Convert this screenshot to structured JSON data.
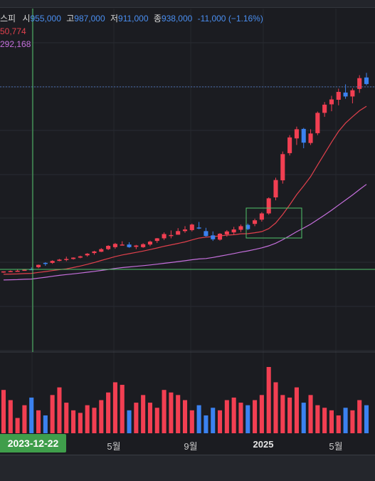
{
  "legend": {
    "name": "스피",
    "open_label": "시",
    "open": "955,000",
    "high_label": "고",
    "high": "987,000",
    "low_label": "저",
    "low": "911,000",
    "close_label": "종",
    "close": "938,000",
    "change": "-11,000 (−1.16%)",
    "ma_short": "50,774",
    "ma_long": "292,168"
  },
  "colors": {
    "background": "#1b1c21",
    "up": "#f23f52",
    "down": "#3b82f0",
    "ma_short": "#e0404c",
    "ma_long": "#c56fdc",
    "crosshair": "#52c46a",
    "price_line": "#4a6bb0"
  },
  "crosshair": {
    "date_label": "2023-12-22"
  },
  "x_axis": {
    "ticks": [
      {
        "label": "5월",
        "bold": false
      },
      {
        "label": "9월",
        "bold": false
      },
      {
        "label": "2025",
        "bold": true
      },
      {
        "label": "5월",
        "bold": false
      }
    ]
  },
  "chart_data": {
    "type": "candlestick",
    "price_axis_visible": false,
    "candles_ohlc_approx": [
      [
        94,
        90,
        93,
        94
      ],
      [
        97,
        92,
        94,
        95
      ],
      [
        100,
        95,
        96,
        96
      ],
      [
        101,
        97,
        99,
        99
      ],
      [
        106,
        100,
        101,
        100
      ],
      [
        115,
        104,
        107,
        114
      ],
      [
        122,
        111,
        120,
        118
      ],
      [
        128,
        117,
        120,
        126
      ],
      [
        132,
        125,
        126,
        130
      ],
      [
        139,
        125,
        131,
        132
      ],
      [
        137,
        130,
        132,
        136
      ],
      [
        142,
        134,
        136,
        140
      ],
      [
        150,
        139,
        143,
        148
      ],
      [
        157,
        145,
        150,
        155
      ],
      [
        165,
        153,
        154,
        162
      ],
      [
        174,
        159,
        162,
        172
      ],
      [
        181,
        163,
        168,
        178
      ],
      [
        186,
        174,
        176,
        176
      ],
      [
        183,
        166,
        176,
        168
      ],
      [
        175,
        162,
        169,
        173
      ],
      [
        180,
        166,
        168,
        177
      ],
      [
        188,
        171,
        176,
        185
      ],
      [
        196,
        181,
        187,
        195
      ],
      [
        213,
        190,
        195,
        208
      ],
      [
        219,
        195,
        203,
        205
      ],
      [
        226,
        206,
        206,
        217
      ],
      [
        232,
        212,
        217,
        222
      ],
      [
        240,
        216,
        220,
        237
      ],
      [
        245,
        223,
        228,
        225
      ],
      [
        227,
        200,
        217,
        202
      ],
      [
        216,
        187,
        204,
        192
      ],
      [
        211,
        188,
        191,
        209
      ],
      [
        220,
        200,
        207,
        216
      ],
      [
        230,
        205,
        213,
        222
      ],
      [
        237,
        214,
        221,
        232
      ],
      [
        240,
        220,
        236,
        223
      ],
      [
        255,
        232,
        239,
        250
      ],
      [
        275,
        246,
        252,
        271
      ],
      [
        320,
        267,
        271,
        317
      ],
      [
        380,
        311,
        320,
        373
      ],
      [
        460,
        362,
        372,
        452
      ],
      [
        510,
        448,
        455,
        503
      ],
      [
        536,
        480,
        500,
        528
      ],
      [
        532,
        470,
        529,
        487
      ],
      [
        528,
        480,
        486,
        515
      ],
      [
        582,
        510,
        516,
        578
      ],
      [
        611,
        566,
        578,
        603
      ],
      [
        630,
        583,
        604,
        619
      ],
      [
        652,
        601,
        618,
        642
      ],
      [
        665,
        621,
        640,
        628
      ],
      [
        653,
        607,
        628,
        647
      ],
      [
        693,
        639,
        651,
        684
      ],
      [
        700,
        662,
        686,
        666
      ]
    ],
    "volume_approx": [
      34,
      26,
      12,
      22,
      28,
      18,
      14,
      30,
      36,
      24,
      18,
      16,
      22,
      20,
      26,
      32,
      40,
      38,
      18,
      24,
      30,
      24,
      20,
      34,
      32,
      30,
      26,
      18,
      22,
      14,
      20,
      18,
      26,
      28,
      24,
      22,
      26,
      30,
      52,
      40,
      30,
      28,
      36,
      24,
      30,
      22,
      20,
      18,
      14,
      20,
      18,
      26,
      22
    ],
    "moving_average_short_last": "50,774",
    "moving_average_long_last": "292,168"
  }
}
